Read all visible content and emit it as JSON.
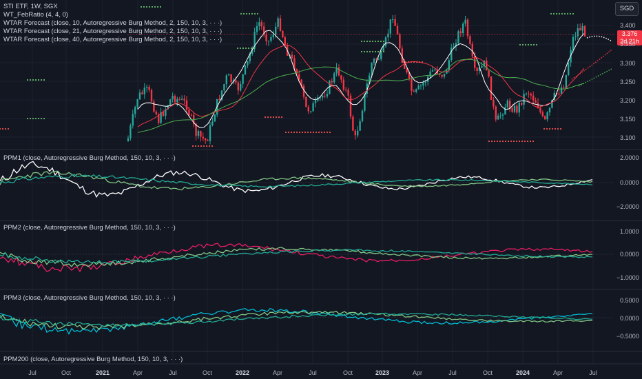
{
  "header": {
    "symbol_line": "STI ETF, 1W, SGX",
    "indicator_1": "WT_FebRatio (4, 4, 0)",
    "forecast_1": "WTAR Forecast (close, 10, Autoregressive Burg Method, 2, 150, 10, 3, · · ·)",
    "forecast_2": "WTAR Forecast (close, 21, Autoregressive Burg Method, 2, 150, 10, 3, · · ·)",
    "forecast_3": "WTAR Forecast (close, 40, Autoregressive Burg Method, 2, 150, 10, 3, · · ·)"
  },
  "currency_button": "SGD",
  "price_badge": {
    "price": "3.376",
    "countdown": "2d 21h"
  },
  "price_axis": [
    "3.400",
    "3.350",
    "3.300",
    "3.250",
    "3.200",
    "3.150",
    "3.100"
  ],
  "panes": [
    {
      "title": "PPM1 (close, Autoregressive Burg Method, 150, 10, 3, · · ·)",
      "ticks": [
        "2.0000",
        "0.0000",
        "−2.0000"
      ]
    },
    {
      "title": "PPM2 (close, Autoregressive Burg Method, 150, 10, 3, · · ·)",
      "ticks": [
        "1.0000",
        "0.0000",
        "−1.0000"
      ]
    },
    {
      "title": "PPM3 (close, Autoregressive Burg Method, 150, 10, 3, · · ·)",
      "ticks": [
        "0.5000",
        "0.0000",
        "−0.5000"
      ]
    },
    {
      "title": "PPM200 (close, Autoregressive Burg Method, 150, 10, 3, · · ·)",
      "ticks": []
    }
  ],
  "time_axis": [
    "Jul",
    "Oct",
    "2021",
    "Apr",
    "Jul",
    "Oct",
    "2022",
    "Apr",
    "Jul",
    "Oct",
    "2023",
    "Apr",
    "Jul",
    "Oct",
    "2024",
    "Apr",
    "Jul"
  ],
  "colors": {
    "up": "#26a69a",
    "down": "#f23645",
    "white_line": "#ffffff",
    "green_line": "#4caf50",
    "teal_line": "#22ab94",
    "pink_line": "#e91e63",
    "cyan_line": "#00bcd4",
    "dots_green": "#66bb6a",
    "dots_red": "#ef5350"
  }
}
